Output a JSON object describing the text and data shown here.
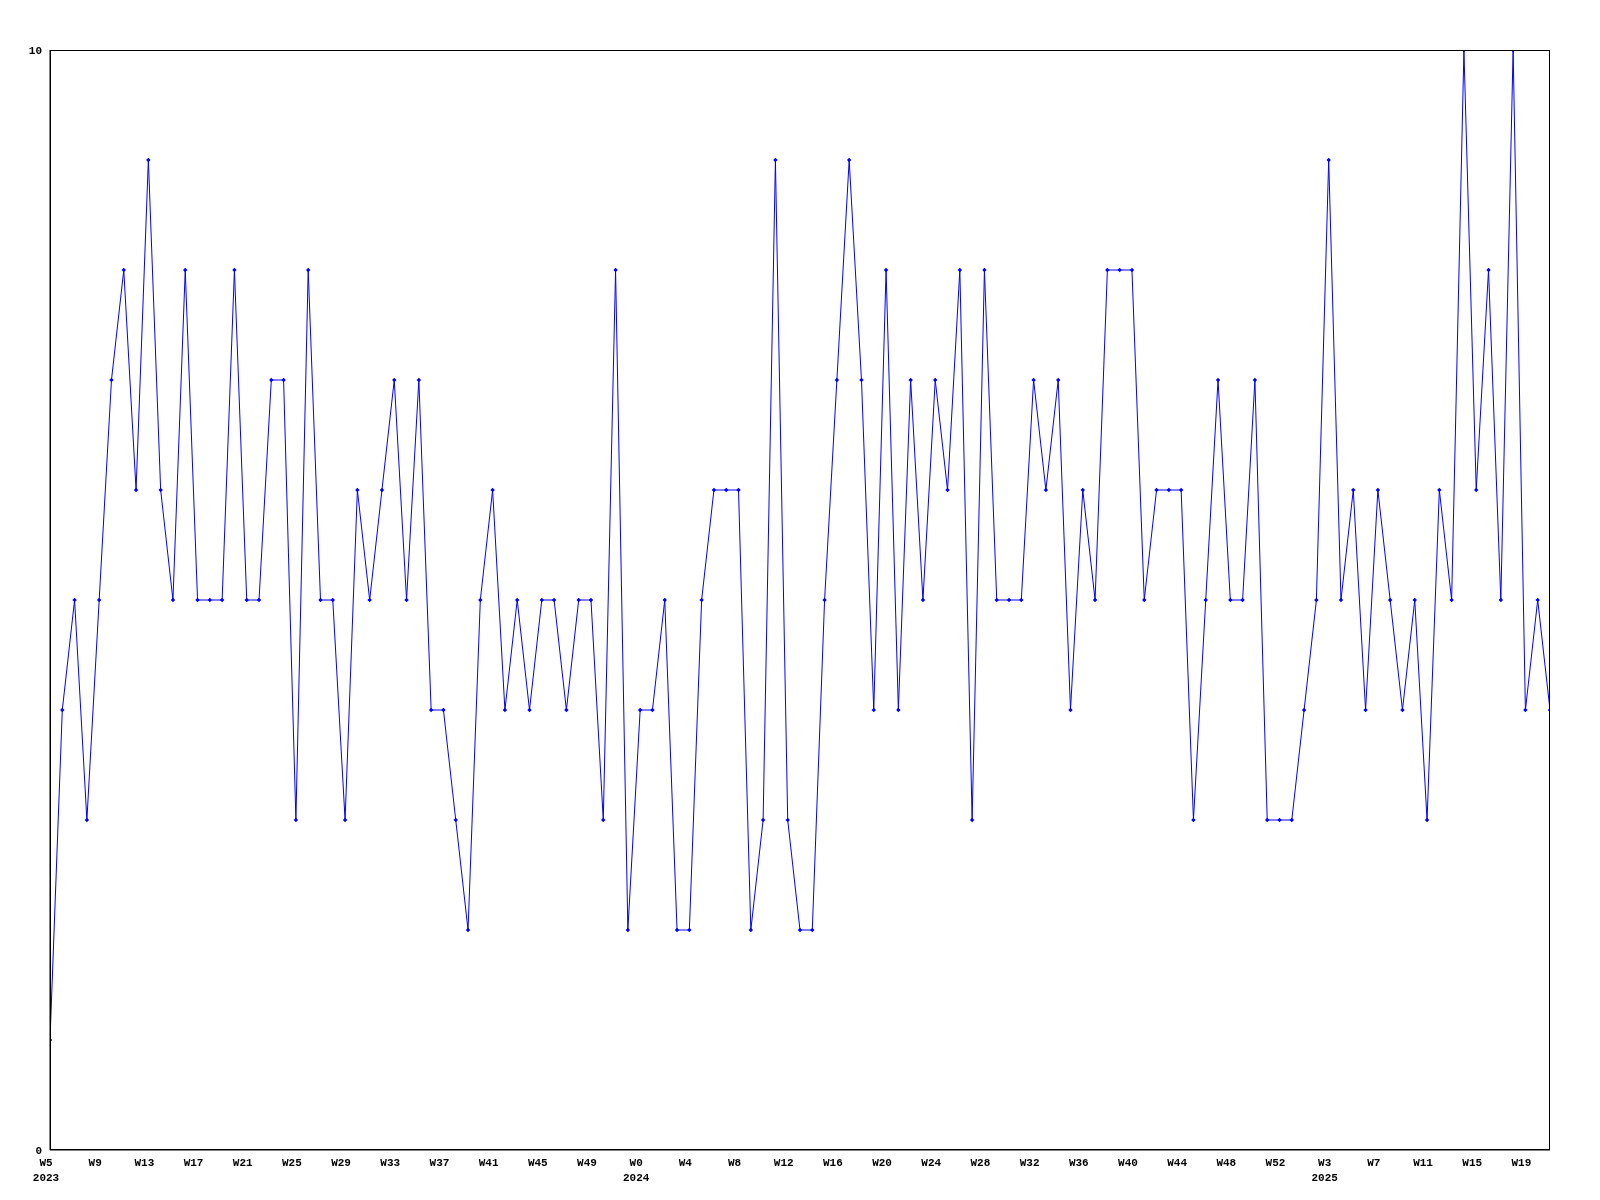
{
  "chart_data": {
    "type": "line",
    "categories": [
      "W5\n2023",
      null,
      null,
      null,
      "W9",
      null,
      null,
      null,
      "W13",
      null,
      null,
      null,
      "W17",
      null,
      null,
      null,
      "W21",
      null,
      null,
      null,
      "W25",
      null,
      null,
      null,
      "W29",
      null,
      null,
      null,
      "W33",
      null,
      null,
      null,
      "W37",
      null,
      null,
      null,
      "W41",
      null,
      null,
      null,
      "W45",
      null,
      null,
      null,
      "W49",
      null,
      null,
      null,
      "W0\n2024",
      null,
      null,
      null,
      "W4",
      null,
      null,
      null,
      "W8",
      null,
      null,
      null,
      "W12",
      null,
      null,
      null,
      "W16",
      null,
      null,
      null,
      "W20",
      null,
      null,
      null,
      "W24",
      null,
      null,
      null,
      "W28",
      null,
      null,
      null,
      "W32",
      null,
      null,
      null,
      "W36",
      null,
      null,
      null,
      "W40",
      null,
      null,
      null,
      "W44",
      null,
      null,
      null,
      "W48",
      null,
      null,
      null,
      "W52",
      null,
      null,
      null,
      "W3\n2025",
      null,
      null,
      null,
      "W7",
      null,
      null,
      null,
      "W11",
      null,
      null,
      null,
      "W15",
      null,
      null,
      null,
      "W19",
      null,
      null
    ],
    "series": [
      {
        "color": "#0000ff",
        "values": [
          1,
          4,
          5,
          3,
          5,
          7,
          8,
          6,
          9,
          6,
          5,
          8,
          5,
          5,
          5,
          8,
          5,
          5,
          7,
          7,
          3,
          8,
          5,
          5,
          3,
          6,
          5,
          6,
          7,
          5,
          7,
          4,
          4,
          3,
          2,
          5,
          6,
          4,
          5,
          4,
          5,
          5,
          4,
          5,
          5,
          3,
          8,
          2,
          4,
          4,
          5,
          2,
          2,
          5,
          6,
          6,
          6,
          2,
          3,
          9,
          3,
          2,
          2,
          5,
          7,
          9,
          7,
          4,
          8,
          4,
          7,
          5,
          7,
          6,
          8,
          3,
          8,
          5,
          5,
          5,
          7,
          6,
          7,
          4,
          6,
          5,
          8,
          8,
          8,
          5,
          6,
          6,
          6,
          3,
          5,
          7,
          5,
          5,
          7,
          3,
          3,
          3,
          4,
          5,
          9,
          5,
          6,
          4,
          6,
          5,
          4,
          5,
          3,
          6,
          5,
          10,
          6,
          8,
          5,
          10,
          4,
          5,
          4
        ]
      }
    ],
    "ylim": [
      0,
      10
    ],
    "yticks": [
      0,
      10
    ],
    "marker": "diamond",
    "line_style": "solid"
  }
}
